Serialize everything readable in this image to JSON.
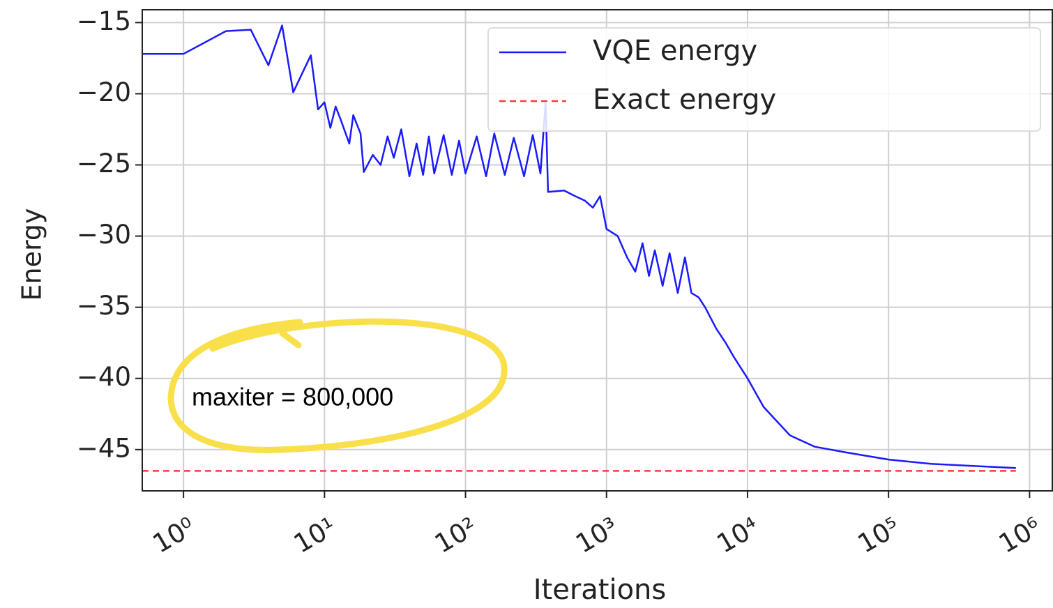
{
  "chart_data": {
    "type": "line",
    "xlabel": "Iterations",
    "ylabel": "Energy",
    "annotation": "maxiter = 800,000",
    "xscale": "log",
    "grid": true,
    "legend": "upper right",
    "xlim": [
      0.51,
      1450000
    ],
    "ylim": [
      -47.9,
      -14.1
    ],
    "xticks": [
      {
        "value": 1,
        "label": "10⁰"
      },
      {
        "value": 10,
        "label": "10¹"
      },
      {
        "value": 100,
        "label": "10²"
      },
      {
        "value": 1000,
        "label": "10³"
      },
      {
        "value": 10000,
        "label": "10⁴"
      },
      {
        "value": 100000,
        "label": "10⁵"
      },
      {
        "value": 1000000,
        "label": "10⁶"
      }
    ],
    "yticks": [
      {
        "value": -15,
        "label": "−15"
      },
      {
        "value": -20,
        "label": "−20"
      },
      {
        "value": -25,
        "label": "−25"
      },
      {
        "value": -30,
        "label": "−30"
      },
      {
        "value": -35,
        "label": "−35"
      },
      {
        "value": -40,
        "label": "−40"
      },
      {
        "value": -45,
        "label": "−45"
      }
    ],
    "x": [
      0.51,
      1,
      2,
      3,
      4,
      5,
      6,
      7,
      8,
      9,
      10,
      11,
      12,
      13,
      15,
      16,
      18,
      19,
      22,
      25,
      28,
      31,
      35,
      40,
      45,
      50,
      55,
      60,
      70,
      80,
      90,
      100,
      120,
      140,
      160,
      190,
      220,
      260,
      300,
      340,
      370,
      385,
      500,
      600,
      700,
      800,
      900,
      1000,
      1200,
      1400,
      1600,
      1800,
      2000,
      2200,
      2500,
      2800,
      3200,
      3600,
      4000,
      4500,
      5000,
      6000,
      7000,
      8000,
      10000,
      13000,
      20000,
      30000,
      50000,
      100000,
      200000,
      500000,
      800000
    ],
    "series": [
      {
        "name": "VQE energy",
        "color": "#1a1aff",
        "values": [
          -17.2,
          -17.2,
          -15.6,
          -15.5,
          -18.0,
          -15.2,
          -19.9,
          -18.5,
          -17.3,
          -21.1,
          -20.6,
          -22.4,
          -20.9,
          -21.8,
          -23.5,
          -21.5,
          -22.8,
          -25.5,
          -24.3,
          -25.0,
          -23.0,
          -24.5,
          -22.5,
          -25.8,
          -23.5,
          -25.7,
          -23.0,
          -25.6,
          -22.9,
          -25.7,
          -23.3,
          -25.6,
          -23.0,
          -25.8,
          -22.8,
          -25.7,
          -23.1,
          -25.8,
          -22.9,
          -25.6,
          -20.6,
          -26.9,
          -26.8,
          -27.2,
          -27.5,
          -28.0,
          -27.2,
          -29.5,
          -30.0,
          -31.5,
          -32.5,
          -30.5,
          -32.8,
          -31.0,
          -33.5,
          -31.2,
          -34.0,
          -31.5,
          -34.0,
          -34.3,
          -35.0,
          -36.5,
          -37.5,
          -38.5,
          -40.0,
          -42.0,
          -44.0,
          -44.8,
          -45.2,
          -45.7,
          -46.0,
          -46.2,
          -46.3
        ]
      }
    ],
    "hlines": [
      {
        "name": "Exact energy",
        "color": "#ff3b3b",
        "y": -46.5
      }
    ]
  }
}
